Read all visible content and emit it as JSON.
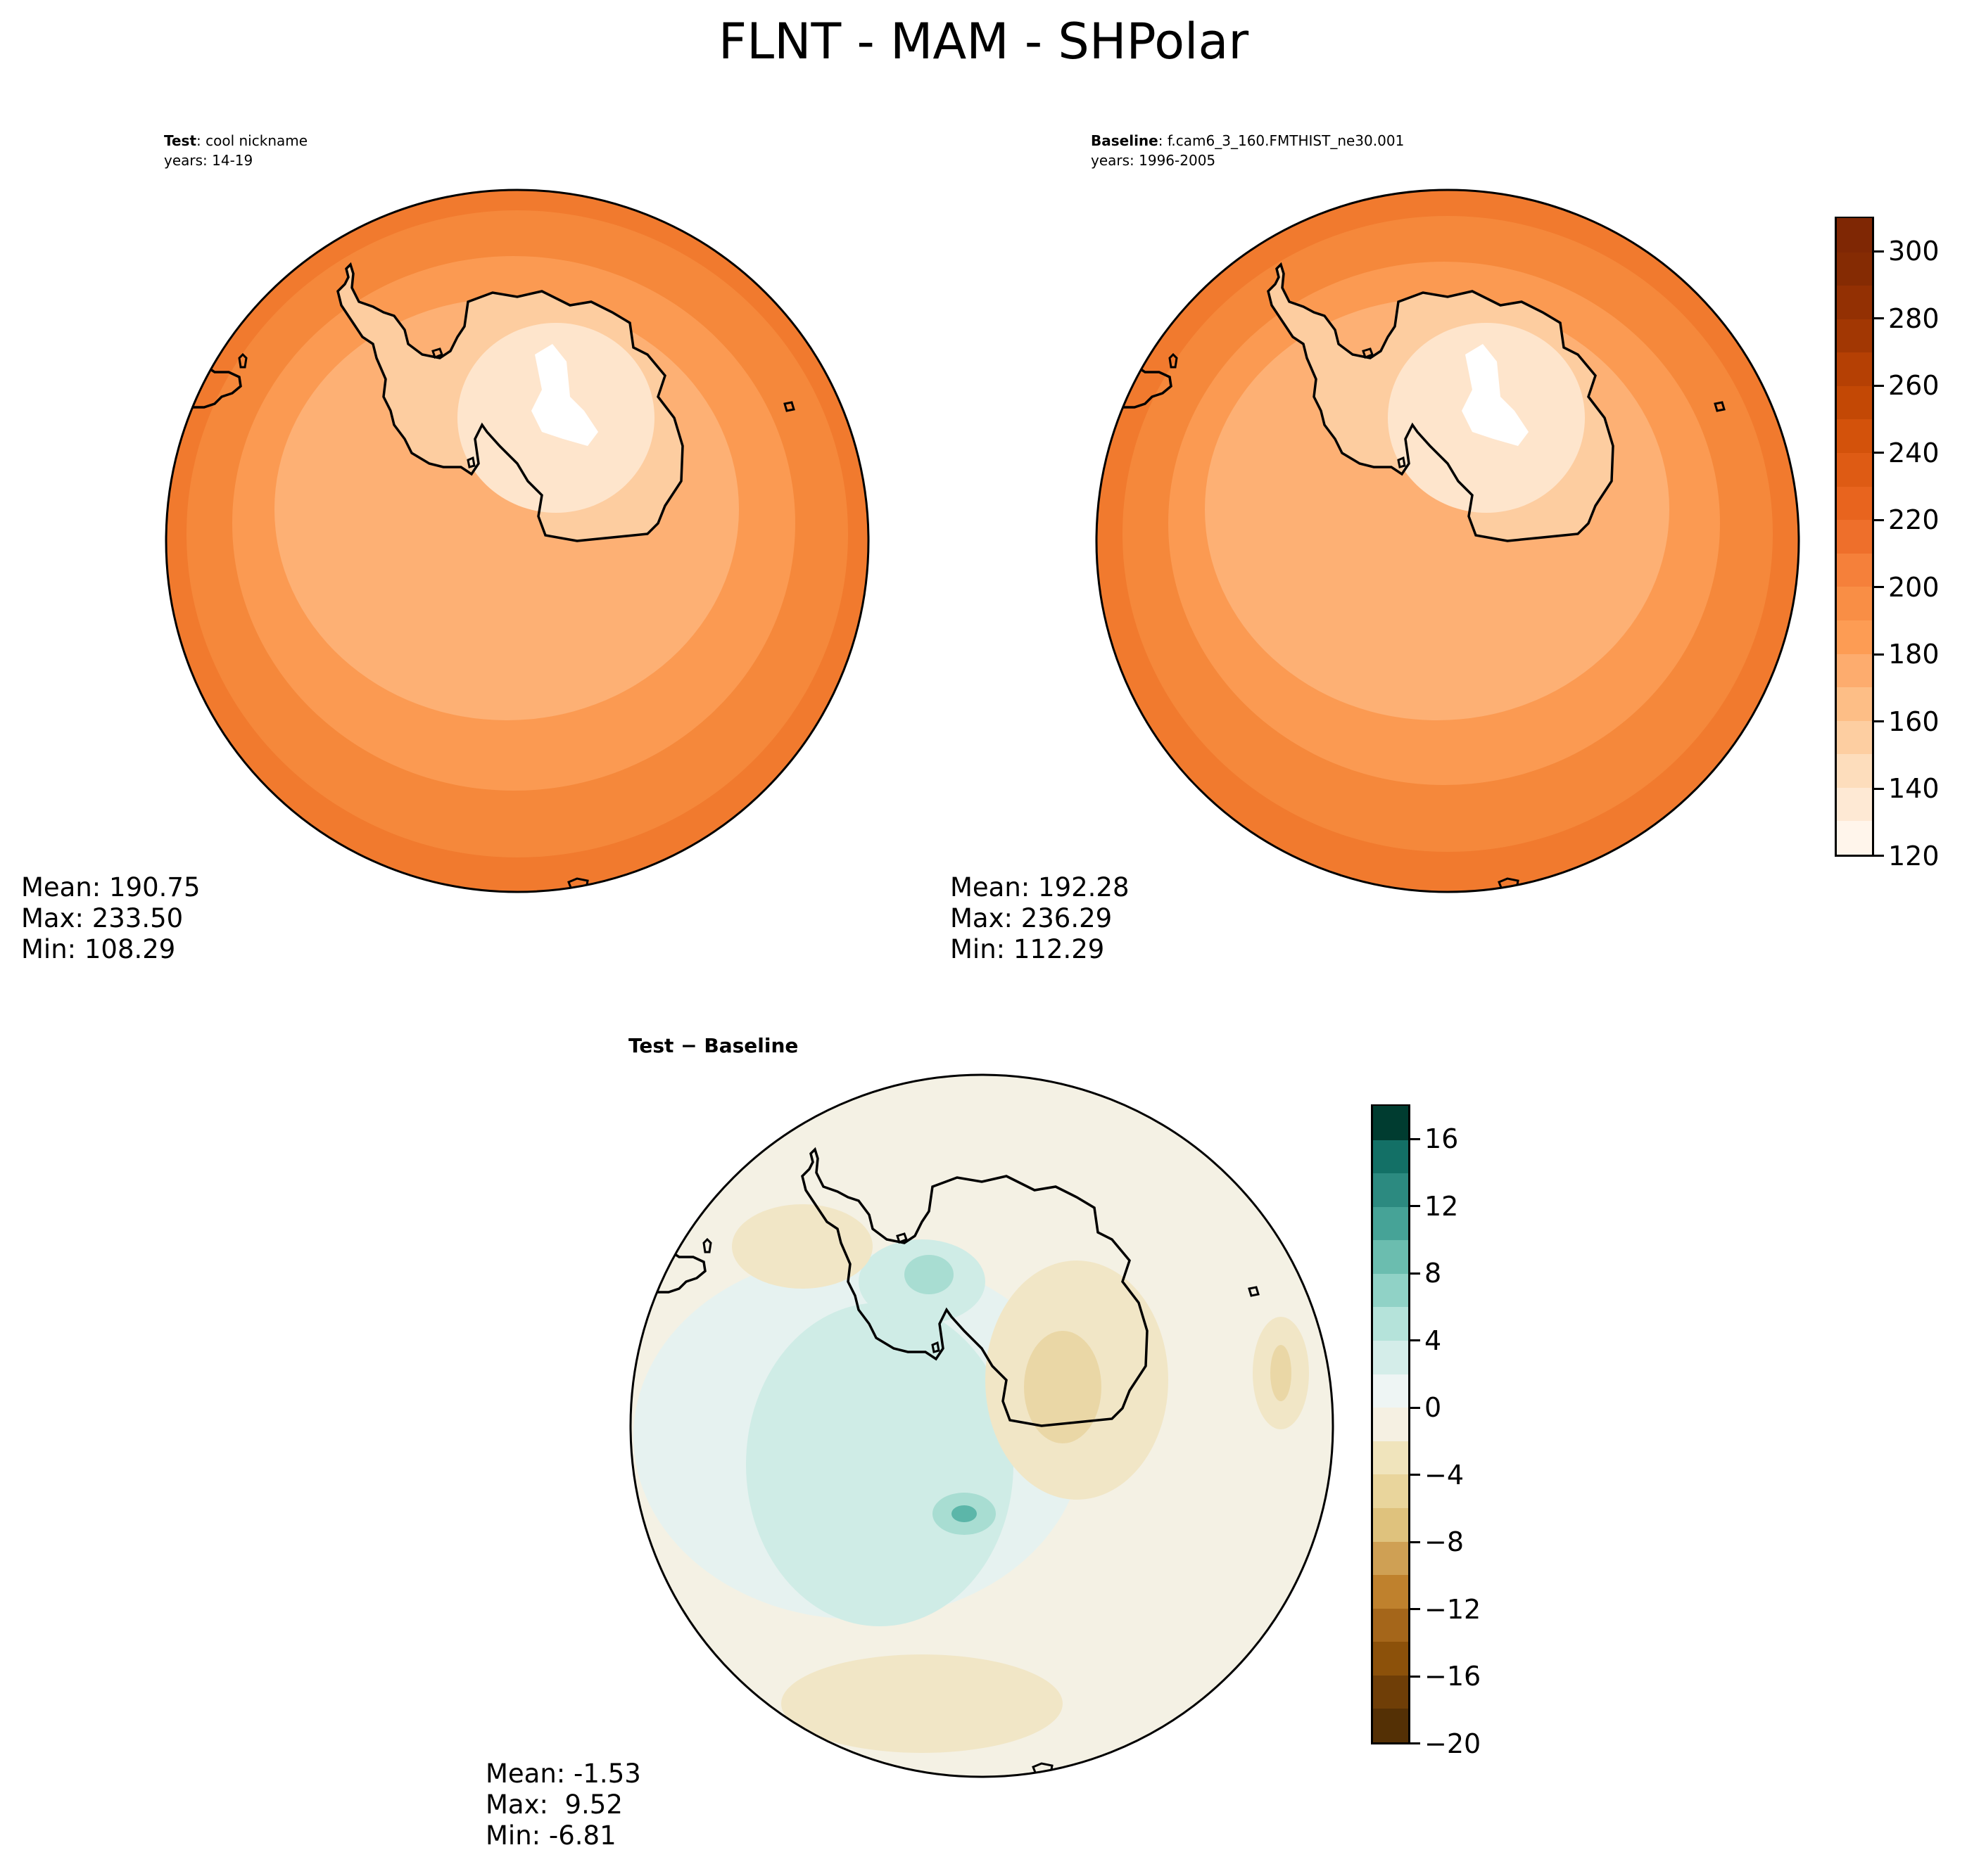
{
  "title": "FLNT - MAM - SHPolar",
  "panels": {
    "test": {
      "label": "Test",
      "name": "cool nickname",
      "years": "years: 14-19",
      "mean": "Mean: 190.75",
      "max": "Max: 233.50",
      "min": "Min: 108.29"
    },
    "baseline": {
      "label": "Baseline",
      "name": "f.cam6_3_160.FMTHIST_ne30.001",
      "years": "years: 1996-2005",
      "mean": "Mean: 192.28",
      "max": "Max: 236.29",
      "min": "Min: 112.29"
    },
    "diff": {
      "title": "Test − Baseline",
      "mean": "Mean: -1.53",
      "max": "Max:  9.52",
      "min": "Min: -6.81"
    }
  },
  "colorbars": {
    "main": {
      "ticks": [
        "300",
        "280",
        "260",
        "240",
        "220",
        "200",
        "180",
        "160",
        "140",
        "120"
      ],
      "range": [
        120,
        310
      ],
      "levels": 19,
      "colors": [
        "#fff5eb",
        "#fee9d4",
        "#fdddbc",
        "#fdcea1",
        "#fdbe86",
        "#fdac6e",
        "#fd9c54",
        "#f98e45",
        "#f5803a",
        "#ee6f2b",
        "#e8641e",
        "#de5b14",
        "#d3520b",
        "#c34805",
        "#b54004",
        "#a23703",
        "#933003",
        "#852b03",
        "#7f2704"
      ],
      "swatch_colors": {
        "ocean_outer": "#f17a2e",
        "ocean_mid": "#f5883b",
        "ocean_inner": "#fb9a52",
        "near_coast": "#fdb074",
        "coast": "#fdcda0",
        "interior": "#fee5cc",
        "center": "#ffffff"
      }
    },
    "diff": {
      "ticks": [
        "16",
        "12",
        "8",
        "4",
        "0",
        "−4",
        "−8",
        "−12",
        "−16",
        "−20"
      ],
      "range": [
        -20,
        18
      ],
      "levels": 19,
      "colors": [
        "#543005",
        "#6f3e07",
        "#8c510a",
        "#a5661a",
        "#bf812d",
        "#cfa054",
        "#dfc27d",
        "#e9d59c",
        "#f0e4bc",
        "#f5f0e2",
        "#eef5f4",
        "#d4ede9",
        "#b5e3da",
        "#90d2c6",
        "#6bbdaf",
        "#46a397",
        "#2c8a80",
        "#137066",
        "#003c30"
      ],
      "swatch_colors": {
        "background": "#f4f1e4",
        "neutral_pos": "#e6f2f0",
        "pos1": "#cfece6",
        "pos2": "#a8ddd2",
        "pos3": "#5cb6a9",
        "neg1": "#f1e6c6",
        "neg2": "#ead7a6"
      }
    }
  },
  "chart_data": [
    {
      "type": "heatmap",
      "projection": "south-polar-stereographic",
      "title": "Test : cool nickname",
      "subtitle": "years: 14-19",
      "variable": "FLNT",
      "season": "MAM",
      "region": "SHPolar",
      "colorbar_range": [
        120,
        310
      ],
      "stats": {
        "mean": 190.75,
        "max": 233.5,
        "min": 108.29
      }
    },
    {
      "type": "heatmap",
      "projection": "south-polar-stereographic",
      "title": "Baseline : f.cam6_3_160.FMTHIST_ne30.001",
      "subtitle": "years: 1996-2005",
      "variable": "FLNT",
      "season": "MAM",
      "region": "SHPolar",
      "colorbar_range": [
        120,
        310
      ],
      "stats": {
        "mean": 192.28,
        "max": 236.29,
        "min": 112.29
      }
    },
    {
      "type": "heatmap",
      "projection": "south-polar-stereographic",
      "title": "Test − Baseline",
      "variable": "FLNT",
      "season": "MAM",
      "region": "SHPolar",
      "colorbar_range": [
        -20,
        18
      ],
      "stats": {
        "mean": -1.53,
        "max": 9.52,
        "min": -6.81
      }
    }
  ]
}
